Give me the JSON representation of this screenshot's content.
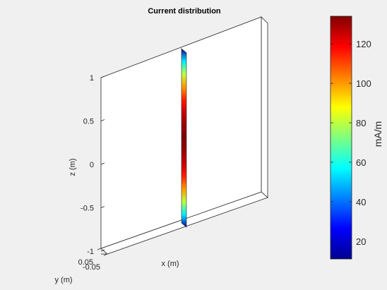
{
  "chart_data": {
    "type": "surface-3d",
    "title": "Current distribution",
    "xlabel": "x (m)",
    "ylabel": "y (m)",
    "zlabel": "z (m)",
    "z_ticks": [
      "1",
      "0.5",
      "0",
      "-0.5",
      "-1"
    ],
    "y_ticks": [
      "0.05",
      "-0.05"
    ],
    "zlim": [
      -1,
      1
    ],
    "colorbar": {
      "label": "mA/m",
      "colormap": "jet",
      "range": [
        11,
        134
      ],
      "ticks": [
        20,
        40,
        60,
        80,
        100,
        120
      ]
    },
    "dipole_current": {
      "z": [
        -0.7,
        -0.6,
        -0.5,
        -0.4,
        -0.3,
        -0.2,
        -0.1,
        0,
        0.1,
        0.2,
        0.3,
        0.4,
        0.5,
        0.6,
        0.7
      ],
      "value": [
        15,
        55,
        80,
        100,
        115,
        125,
        131,
        134,
        131,
        125,
        115,
        100,
        80,
        55,
        15
      ]
    }
  },
  "colors": {
    "background": "#f0f0f0",
    "plate_face": "#ffffff",
    "edges": "#262626"
  }
}
